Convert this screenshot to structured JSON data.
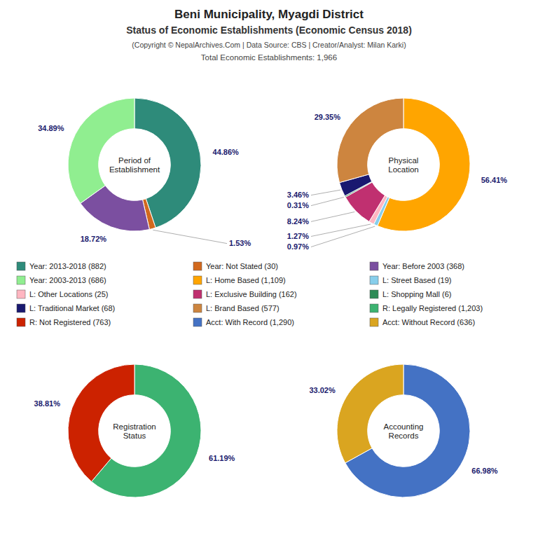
{
  "title": "Beni Municipality, Myagdi District",
  "subtitle": "Status of Economic Establishments (Economic Census 2018)",
  "annotations": [
    "(Copyright © NepalArchives.Com | Data Source: CBS | Creator/Analyst: Milan Karki)",
    "Total Economic Establishments: 1,966"
  ],
  "chart_data": [
    {
      "type": "donut",
      "title": "Period of\nEstablishment",
      "categories": [
        "Year: 2013-2018 (882)",
        "Year: Not Stated (30)",
        "Year: Before 2003 (368)",
        "Year: 2003-2013 (686)"
      ],
      "values": [
        44.86,
        1.53,
        18.72,
        34.89
      ],
      "value_labels": [
        "44.86%",
        "1.53%",
        "18.72%",
        "34.89%"
      ],
      "colors": [
        "#2E8B7A",
        "#D2691E",
        "#7B4FA0",
        "#90EE90"
      ],
      "data_labels": true
    },
    {
      "type": "donut",
      "title": "Physical\nLocation",
      "categories": [
        "L: Home Based (1,109)",
        "L: Street Based (19)",
        "L: Other Locations (25)",
        "L: Exclusive Building (162)",
        "L: Shopping Mall (6)",
        "L: Traditional Market (68)",
        "L: Brand Based (577)"
      ],
      "values": [
        56.41,
        0.97,
        1.27,
        8.24,
        0.31,
        3.46,
        29.35
      ],
      "value_labels": [
        "56.41%",
        "0.97%",
        "1.27%",
        "8.24%",
        "0.31%",
        "3.46%",
        "29.35%"
      ],
      "colors": [
        "#FFA500",
        "#87CEEB",
        "#FFB6C1",
        "#C03070",
        "#2E8B57",
        "#191970",
        "#CD853F"
      ],
      "data_labels": true
    },
    {
      "type": "donut",
      "title": "Registration\nStatus",
      "categories": [
        "R: Legally Registered (1,203)",
        "R: Not Registered (763)"
      ],
      "values": [
        61.19,
        38.81
      ],
      "value_labels": [
        "61.19%",
        "38.81%"
      ],
      "colors": [
        "#3CB371",
        "#CC2200"
      ],
      "data_labels": true
    },
    {
      "type": "donut",
      "title": "Accounting\nRecords",
      "categories": [
        "Acct: With Record (1,290)",
        "Acct: Without Record (636)"
      ],
      "values": [
        66.98,
        33.02
      ],
      "value_labels": [
        "66.98%",
        "33.02%"
      ],
      "colors": [
        "#4472C4",
        "#DAA520"
      ],
      "data_labels": true
    }
  ]
}
